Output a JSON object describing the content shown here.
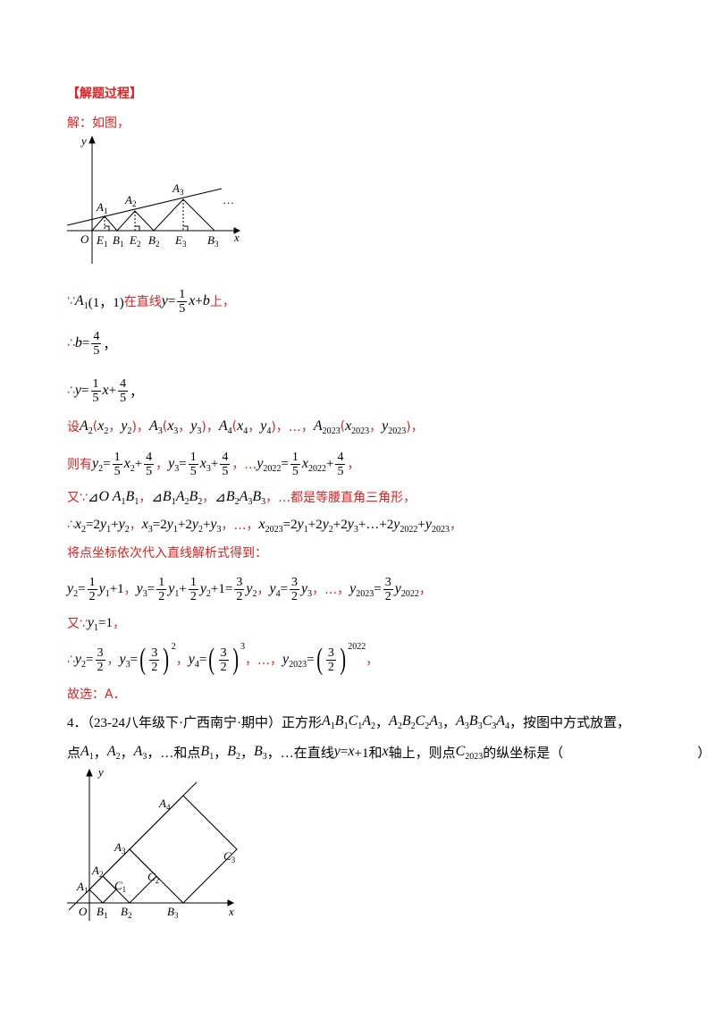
{
  "header": {
    "title": "【解题过程】"
  },
  "lines": [
    {
      "tokens": [
        {
          "r": "解：如图，"
        }
      ]
    },
    {
      "tokens": [
        {
          "r": "∵"
        },
        {
          "m": "A"
        },
        {
          "s": "1"
        },
        {
          "n": "(1，1)"
        },
        {
          "r": "在直线"
        },
        {
          "m": "y"
        },
        {
          "n": "="
        },
        {
          "f": [
            "1",
            "5"
          ]
        },
        {
          "m": "x"
        },
        {
          "n": "+"
        },
        {
          "m": "b"
        },
        {
          "r": "上，"
        }
      ]
    },
    {
      "tokens": [
        {
          "r": "∴"
        },
        {
          "m": "b"
        },
        {
          "n": "="
        },
        {
          "f": [
            "4",
            "5"
          ]
        },
        {
          "n": "，"
        }
      ]
    },
    {
      "tokens": [
        {
          "r": "∴"
        },
        {
          "m": "y"
        },
        {
          "n": "="
        },
        {
          "f": [
            "1",
            "5"
          ]
        },
        {
          "m": "x"
        },
        {
          "n": "+"
        },
        {
          "f": [
            "4",
            "5"
          ]
        },
        {
          "n": "，"
        }
      ]
    },
    {
      "tokens": [
        {
          "r": "设"
        },
        {
          "m": "A"
        },
        {
          "s": "2"
        },
        {
          "r": "("
        },
        {
          "m": "x"
        },
        {
          "s": "2"
        },
        {
          "r": "，"
        },
        {
          "m": "y"
        },
        {
          "s": "2"
        },
        {
          "r": ")，"
        },
        {
          "m": "A"
        },
        {
          "s": "3"
        },
        {
          "r": "("
        },
        {
          "m": "x"
        },
        {
          "s": "3"
        },
        {
          "r": "，"
        },
        {
          "m": "y"
        },
        {
          "s": "3"
        },
        {
          "r": ")，"
        },
        {
          "m": "A"
        },
        {
          "s": "4"
        },
        {
          "r": "("
        },
        {
          "m": "x"
        },
        {
          "s": "4"
        },
        {
          "r": "，"
        },
        {
          "m": "y"
        },
        {
          "s": "4"
        },
        {
          "r": ")，"
        },
        {
          "r": "…，"
        },
        {
          "m": "A"
        },
        {
          "s": "2023"
        },
        {
          "r": "("
        },
        {
          "m": "x"
        },
        {
          "s": "2023"
        },
        {
          "r": "，"
        },
        {
          "m": "y"
        },
        {
          "s": "2023"
        },
        {
          "r": ")，"
        }
      ]
    },
    {
      "tokens": [
        {
          "r": "则有"
        },
        {
          "m": "y"
        },
        {
          "s": "2"
        },
        {
          "n": "="
        },
        {
          "f": [
            "1",
            "5"
          ]
        },
        {
          "m": "x"
        },
        {
          "s": "2"
        },
        {
          "n": "+"
        },
        {
          "f": [
            "4",
            "5"
          ]
        },
        {
          "r": "，"
        },
        {
          "m": "y"
        },
        {
          "s": "3"
        },
        {
          "n": "="
        },
        {
          "f": [
            "1",
            "5"
          ]
        },
        {
          "m": "x"
        },
        {
          "s": "3"
        },
        {
          "n": "+"
        },
        {
          "f": [
            "4",
            "5"
          ]
        },
        {
          "r": "，…"
        },
        {
          "m": "y"
        },
        {
          "s": "2022"
        },
        {
          "n": "="
        },
        {
          "f": [
            "1",
            "5"
          ]
        },
        {
          "m": "x"
        },
        {
          "s": "2022"
        },
        {
          "n": "+"
        },
        {
          "f": [
            "4",
            "5"
          ]
        },
        {
          "r": "，"
        }
      ]
    },
    {
      "tokens": [
        {
          "r": "又∵"
        },
        {
          "n": "⊿"
        },
        {
          "m": "O A"
        },
        {
          "s": "1"
        },
        {
          "m": " B"
        },
        {
          "s": "1"
        },
        {
          "r": "，"
        },
        {
          "n": "⊿"
        },
        {
          "m": "B"
        },
        {
          "s": "1"
        },
        {
          "m": " A"
        },
        {
          "s": "2"
        },
        {
          "m": " B"
        },
        {
          "s": "2"
        },
        {
          "r": "，"
        },
        {
          "n": "⊿"
        },
        {
          "m": "B"
        },
        {
          "s": "2"
        },
        {
          "m": " A"
        },
        {
          "s": "3"
        },
        {
          "m": " B"
        },
        {
          "s": "3"
        },
        {
          "r": "，…都是等腰直角三角形，"
        }
      ]
    },
    {
      "tokens": [
        {
          "r": "∴"
        },
        {
          "m": "x"
        },
        {
          "s": "2"
        },
        {
          "n": "=2"
        },
        {
          "m": "y"
        },
        {
          "s": "1"
        },
        {
          "n": "+"
        },
        {
          "m": "y"
        },
        {
          "s": "2"
        },
        {
          "r": "，"
        },
        {
          "m": "x"
        },
        {
          "s": "3"
        },
        {
          "n": "=2"
        },
        {
          "m": "y"
        },
        {
          "s": "1"
        },
        {
          "n": "+2"
        },
        {
          "m": "y"
        },
        {
          "s": "2"
        },
        {
          "n": "+"
        },
        {
          "m": "y"
        },
        {
          "s": "3"
        },
        {
          "r": "，…，"
        },
        {
          "m": "x"
        },
        {
          "s": "2023"
        },
        {
          "n": "=2"
        },
        {
          "m": "y"
        },
        {
          "s": "1"
        },
        {
          "n": "+2"
        },
        {
          "m": "y"
        },
        {
          "s": "2"
        },
        {
          "n": "+2"
        },
        {
          "m": "y"
        },
        {
          "s": "3"
        },
        {
          "n": "+…+2"
        },
        {
          "m": "y"
        },
        {
          "s": "2022"
        },
        {
          "n": "+"
        },
        {
          "m": "y"
        },
        {
          "s": "2023"
        },
        {
          "r": "，"
        }
      ]
    },
    {
      "tokens": [
        {
          "r": "将点坐标依次代入直线解析式得到："
        }
      ]
    },
    {
      "tokens": [
        {
          "m": "y"
        },
        {
          "s": "2"
        },
        {
          "n": "="
        },
        {
          "f": [
            "1",
            "2"
          ]
        },
        {
          "m": "y"
        },
        {
          "s": "1"
        },
        {
          "n": "+1"
        },
        {
          "r": "，"
        },
        {
          "m": "y"
        },
        {
          "s": "3"
        },
        {
          "n": "="
        },
        {
          "f": [
            "1",
            "2"
          ]
        },
        {
          "m": "y"
        },
        {
          "s": "1"
        },
        {
          "n": "+"
        },
        {
          "f": [
            "1",
            "2"
          ]
        },
        {
          "m": "y"
        },
        {
          "s": "2"
        },
        {
          "n": "+1="
        },
        {
          "f": [
            "3",
            "2"
          ]
        },
        {
          "m": "y"
        },
        {
          "s": "2"
        },
        {
          "r": "，"
        },
        {
          "m": "y"
        },
        {
          "s": "4"
        },
        {
          "n": "="
        },
        {
          "f": [
            "3",
            "2"
          ]
        },
        {
          "m": "y"
        },
        {
          "s": "3"
        },
        {
          "r": "，…，"
        },
        {
          "m": "y"
        },
        {
          "s": "2023"
        },
        {
          "n": "="
        },
        {
          "f": [
            "3",
            "2"
          ]
        },
        {
          "m": "y"
        },
        {
          "s": "2022"
        },
        {
          "r": "，"
        }
      ]
    },
    {
      "tokens": [
        {
          "r": "又∵"
        },
        {
          "m": "y"
        },
        {
          "s": "1"
        },
        {
          "n": "=1"
        },
        {
          "r": "，"
        }
      ]
    },
    {
      "tokens": [
        {
          "r": "∴"
        },
        {
          "m": "y"
        },
        {
          "s": "2"
        },
        {
          "n": "="
        },
        {
          "f": [
            "3",
            "2"
          ]
        },
        {
          "r": "，"
        },
        {
          "m": "y"
        },
        {
          "s": "3"
        },
        {
          "n": "="
        },
        {
          "b": "("
        },
        {
          "f": [
            "3",
            "2"
          ]
        },
        {
          "b": ")"
        },
        {
          "p": "2"
        },
        {
          "r": "，"
        },
        {
          "m": "y"
        },
        {
          "s": "4"
        },
        {
          "n": "="
        },
        {
          "b": "("
        },
        {
          "f": [
            "3",
            "2"
          ]
        },
        {
          "b": ")"
        },
        {
          "p": "3"
        },
        {
          "r": "，…，"
        },
        {
          "m": "y"
        },
        {
          "s": "2023"
        },
        {
          "n": "="
        },
        {
          "b": "("
        },
        {
          "f": [
            "3",
            "2"
          ]
        },
        {
          "b": ")"
        },
        {
          "p": "2022"
        },
        {
          "r": "，"
        }
      ]
    },
    {
      "tokens": [
        {
          "r": "故选：A．"
        }
      ]
    },
    {
      "tokens": [
        {
          "n": "4．（23-24八年级下·广西南宁·期中）正方形"
        },
        {
          "m": "A"
        },
        {
          "s": "1"
        },
        {
          "m": "B"
        },
        {
          "s": "1"
        },
        {
          "m": "C"
        },
        {
          "s": "1"
        },
        {
          "m": "A"
        },
        {
          "s": "2"
        },
        {
          "n": "，"
        },
        {
          "m": "A"
        },
        {
          "s": "2"
        },
        {
          "m": "B"
        },
        {
          "s": "2"
        },
        {
          "m": "C"
        },
        {
          "s": "2"
        },
        {
          "m": "A"
        },
        {
          "s": "3"
        },
        {
          "n": "，"
        },
        {
          "m": "A"
        },
        {
          "s": "3"
        },
        {
          "m": "B"
        },
        {
          "s": "3"
        },
        {
          "m": "C"
        },
        {
          "s": "3"
        },
        {
          "m": "A"
        },
        {
          "s": "4"
        },
        {
          "n": "，按图中方式放置，"
        }
      ]
    },
    {
      "tokens": [
        {
          "n": "点"
        },
        {
          "m": "A"
        },
        {
          "s": "1"
        },
        {
          "n": "，"
        },
        {
          "m": "A"
        },
        {
          "s": "2"
        },
        {
          "n": "，"
        },
        {
          "m": "A"
        },
        {
          "s": "3"
        },
        {
          "n": "，…和点"
        },
        {
          "m": "B"
        },
        {
          "s": "1"
        },
        {
          "n": "，"
        },
        {
          "m": "B"
        },
        {
          "s": "2"
        },
        {
          "n": "，"
        },
        {
          "m": "B"
        },
        {
          "s": "3"
        },
        {
          "n": "，…在直线"
        },
        {
          "m": "y"
        },
        {
          "n": "="
        },
        {
          "m": "x"
        },
        {
          "n": "+1和"
        },
        {
          "m": "x"
        },
        {
          "n": "轴上，则点"
        },
        {
          "m": "C"
        },
        {
          "s": "2023"
        },
        {
          "n": "的纵坐标是（　　　　　　　　　　）"
        }
      ]
    }
  ],
  "figure1": {
    "labels": [
      {
        "t": "y"
      },
      {
        "t": "x"
      },
      {
        "t": "O"
      },
      {
        "t": "A",
        "s": "1"
      },
      {
        "t": "A",
        "s": "2"
      },
      {
        "t": "A",
        "s": "3"
      },
      {
        "t": "E",
        "s": "1"
      },
      {
        "t": "B",
        "s": "1"
      },
      {
        "t": "E",
        "s": "2"
      },
      {
        "t": "B",
        "s": "2"
      },
      {
        "t": "E",
        "s": "3"
      },
      {
        "t": "B",
        "s": "3"
      },
      {
        "t": "…"
      }
    ]
  },
  "figure2": {
    "labels": [
      {
        "t": "y"
      },
      {
        "t": "x"
      },
      {
        "t": "O"
      },
      {
        "t": "A",
        "s": "1"
      },
      {
        "t": "A",
        "s": "2"
      },
      {
        "t": "A",
        "s": "3"
      },
      {
        "t": "A",
        "s": "4"
      },
      {
        "t": "B",
        "s": "1"
      },
      {
        "t": "B",
        "s": "2"
      },
      {
        "t": "B",
        "s": "3"
      },
      {
        "t": "C",
        "s": "1"
      },
      {
        "t": "C",
        "s": "2"
      },
      {
        "t": "C",
        "s": "3"
      }
    ]
  }
}
